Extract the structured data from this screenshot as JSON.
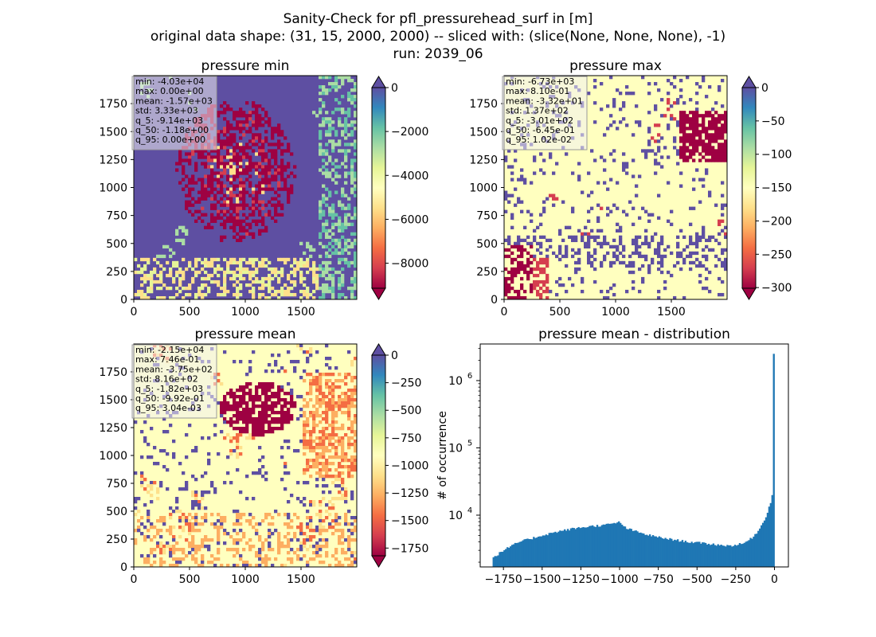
{
  "figure": {
    "suptitle_lines": [
      "Sanity-Check for pfl_pressurehead_surf in [m]",
      "original data shape: (31, 15, 2000, 2000) -- sliced with: (slice(None, None, None), -1)",
      "run: 2039_06"
    ]
  },
  "colors": {
    "spectral": [
      "#9e0142",
      "#d53e4f",
      "#f46d43",
      "#fdae61",
      "#fee08b",
      "#ffffbf",
      "#e6f598",
      "#abdda4",
      "#66c2a5",
      "#3288bd",
      "#5e4fa2"
    ],
    "hist_bar": "#1f77b4",
    "stats_box_bg": "#f0f0f0"
  },
  "chart_data": [
    {
      "type": "heatmap",
      "title": "pressure min",
      "x_ticks": [
        "0",
        "500",
        "1000",
        "1500"
      ],
      "y_ticks": [
        "0",
        "250",
        "500",
        "750",
        "1000",
        "1250",
        "1500",
        "1750"
      ],
      "xlim": [
        0,
        2000
      ],
      "ylim": [
        0,
        2000
      ],
      "colormap": "Spectral",
      "colorbar": {
        "ticks": [
          "0",
          "−2000",
          "−4000",
          "−6000",
          "−8000"
        ],
        "tick_values": [
          0,
          -2000,
          -4000,
          -6000,
          -8000
        ],
        "range": [
          -9140,
          0
        ],
        "extend": "both"
      },
      "dominant": "high",
      "stats": [
        "min: -4.03e+04",
        "max: 0.00e+00",
        "mean: -1.57e+03",
        "std: 3.33e+03",
        "q_5: -9.14e+03",
        "q_50: -1.18e+00",
        "q_95: 0.00e+00"
      ]
    },
    {
      "type": "heatmap",
      "title": "pressure max",
      "x_ticks": [
        "0",
        "500",
        "1000",
        "1500"
      ],
      "y_ticks": [
        "0",
        "250",
        "500",
        "750",
        "1000",
        "1250",
        "1500",
        "1750"
      ],
      "xlim": [
        0,
        2000
      ],
      "ylim": [
        0,
        2000
      ],
      "colormap": "Spectral",
      "colorbar": {
        "ticks": [
          "0",
          "−50",
          "−100",
          "−150",
          "−200",
          "−250",
          "−300"
        ],
        "tick_values": [
          0,
          -50,
          -100,
          -150,
          -200,
          -250,
          -300
        ],
        "range": [
          -301,
          0
        ],
        "extend": "both"
      },
      "dominant": "mid",
      "stats": [
        "min: -6.73e+03",
        "max: 8.10e-01",
        "mean: -3.32e+01",
        "std: 1.37e+02",
        "q_5: -3.01e+02",
        "q_50: -6.45e-01",
        "q_95: 1.02e-02"
      ]
    },
    {
      "type": "heatmap",
      "title": "pressure mean",
      "x_ticks": [
        "0",
        "500",
        "1000",
        "1500"
      ],
      "y_ticks": [
        "0",
        "250",
        "500",
        "750",
        "1000",
        "1250",
        "1500",
        "1750"
      ],
      "xlim": [
        0,
        2000
      ],
      "ylim": [
        0,
        2000
      ],
      "colormap": "Spectral",
      "colorbar": {
        "ticks": [
          "0",
          "−250",
          "−500",
          "−750",
          "−1000",
          "−1250",
          "−1500",
          "−1750"
        ],
        "tick_values": [
          0,
          -250,
          -500,
          -750,
          -1000,
          -1250,
          -1500,
          -1750
        ],
        "range": [
          -1820,
          0
        ],
        "extend": "both"
      },
      "dominant": "mid",
      "stats": [
        "min: -2.15e+04",
        "max: 7.46e-01",
        "mean: -3.75e+02",
        "std: 8.16e+02",
        "q_5: -1.82e+03",
        "q_50: -9.92e-01",
        "q_95: 3.04e-03"
      ]
    },
    {
      "type": "bar",
      "title": "pressure mean - distribution",
      "ylabel": "# of occurrence",
      "y_scale": "log",
      "ylim": [
        1700,
        3500000
      ],
      "xlim": [
        -1900,
        90
      ],
      "x_ticks": [
        "−1750",
        "−1500",
        "−1250",
        "−1000",
        "−750",
        "−500",
        "−250",
        "0"
      ],
      "x_tick_values": [
        -1750,
        -1500,
        -1250,
        -1000,
        -750,
        -500,
        -250,
        0
      ],
      "y_ticks": [
        {
          "mantissa": "10",
          "exp": "4",
          "value": 10000
        },
        {
          "mantissa": "10",
          "exp": "5",
          "value": 100000
        },
        {
          "mantissa": "10",
          "exp": "6",
          "value": 1000000
        }
      ],
      "bin_range": [
        -1820,
        0
      ],
      "bin_count": 182,
      "profile": [
        [
          -1820,
          2300
        ],
        [
          -1750,
          3000
        ],
        [
          -1650,
          4000
        ],
        [
          -1500,
          5000
        ],
        [
          -1400,
          5700
        ],
        [
          -1300,
          6300
        ],
        [
          -1200,
          6800
        ],
        [
          -1100,
          7100
        ],
        [
          -1030,
          7600
        ],
        [
          -1010,
          8000
        ],
        [
          -990,
          7300
        ],
        [
          -950,
          6300
        ],
        [
          -850,
          5300
        ],
        [
          -750,
          4700
        ],
        [
          -650,
          4300
        ],
        [
          -550,
          4000
        ],
        [
          -450,
          3800
        ],
        [
          -350,
          3600
        ],
        [
          -300,
          3500
        ],
        [
          -250,
          3600
        ],
        [
          -200,
          3800
        ],
        [
          -150,
          4500
        ],
        [
          -100,
          6000
        ],
        [
          -60,
          9000
        ],
        [
          -40,
          12000
        ],
        [
          -20,
          17000
        ],
        [
          -10,
          25000
        ],
        [
          0,
          2500000
        ]
      ]
    }
  ]
}
